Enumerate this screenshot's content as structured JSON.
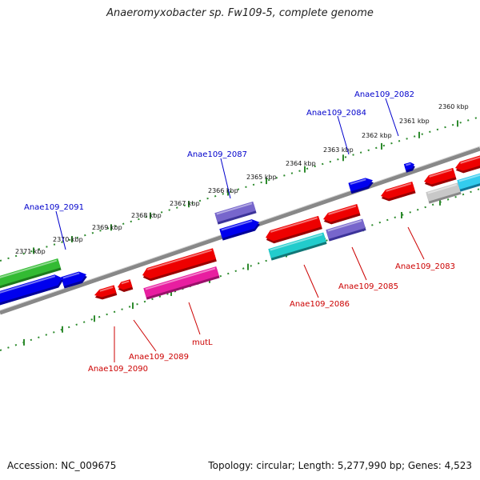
{
  "title": "Anaeromyxobacter sp. Fw109-5, complete genome",
  "footer": {
    "accession": "Accession: NC_009675",
    "summary": "Topology: circular; Length: 5,277,990 bp; Genes: 4,523"
  },
  "colors": {
    "backbone": "#888888",
    "tick": "#2e8b2e",
    "label_top": "#0000cc",
    "label_bottom": "#cc0000"
  },
  "ticks": {
    "unit": "kbp",
    "values": [
      "2371 kbp",
      "2370 kbp",
      "2369 kbp",
      "2368 kbp",
      "2367 kbp",
      "2366 kbp",
      "2365 kbp",
      "2364 kbp",
      "2363 kbp",
      "2362 kbp",
      "2361 kbp",
      "2360 kbp"
    ]
  },
  "genes": {
    "upper_labels": [
      "Anae109_2091",
      "Anae109_2087",
      "Anae109_2084",
      "Anae109_2082"
    ],
    "lower_labels": [
      "Anae109_2090",
      "Anae109_2089",
      "mutL",
      "Anae109_2086",
      "Anae109_2085",
      "Anae109_2083"
    ]
  }
}
